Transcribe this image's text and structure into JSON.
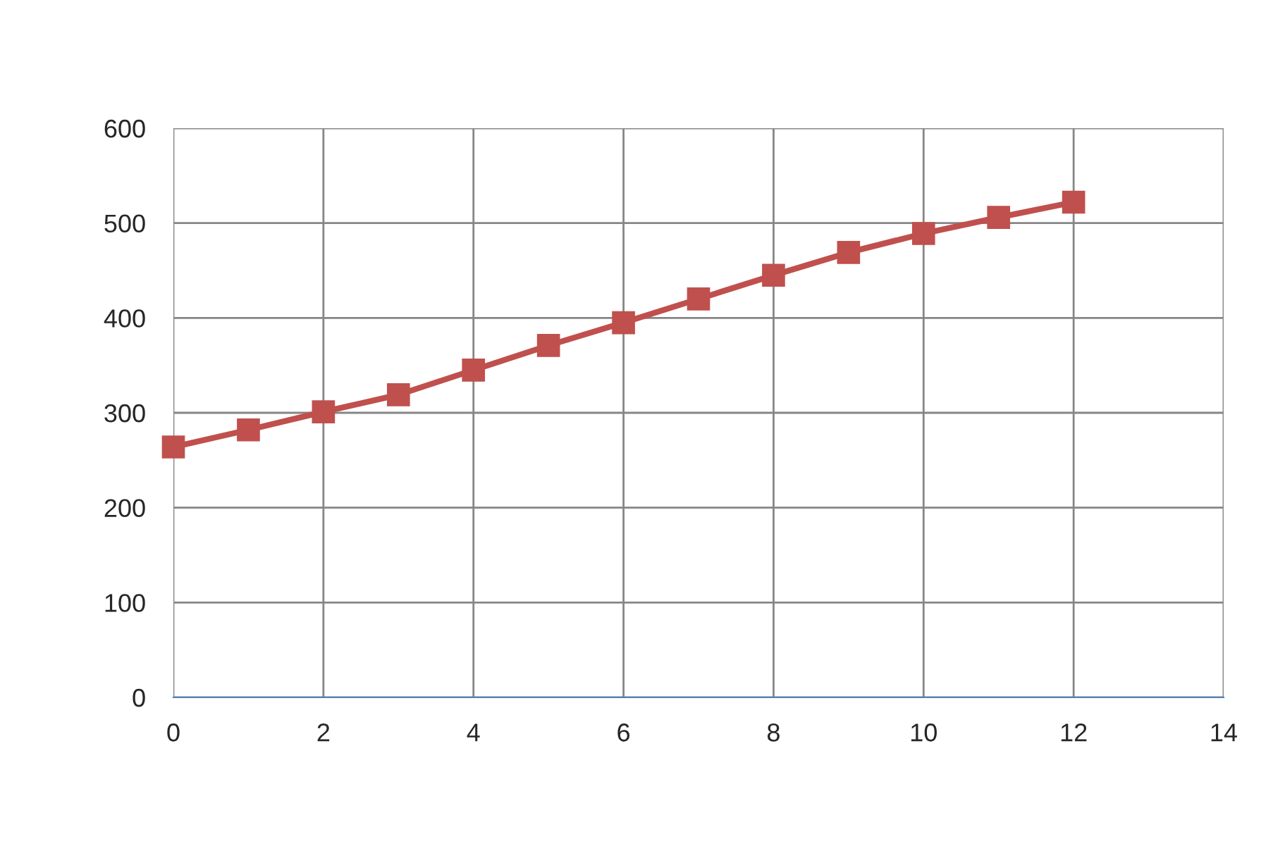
{
  "chart_data": {
    "type": "line",
    "x": [
      0,
      1,
      2,
      3,
      4,
      5,
      6,
      7,
      8,
      9,
      10,
      11,
      12
    ],
    "series": [
      {
        "color": "#c0504d",
        "values": [
          264,
          282,
          301,
          319,
          345,
          371,
          395,
          420,
          445,
          469,
          489,
          506,
          522
        ]
      }
    ],
    "xlim": [
      0,
      14
    ],
    "xticks": [
      0,
      2,
      4,
      6,
      8,
      10,
      12,
      14
    ],
    "ylim": [
      0,
      600
    ],
    "yticks": [
      0,
      100,
      200,
      300,
      400,
      500,
      600
    ],
    "grid": true,
    "marker": "square",
    "line_style": "solid",
    "legend": false
  }
}
